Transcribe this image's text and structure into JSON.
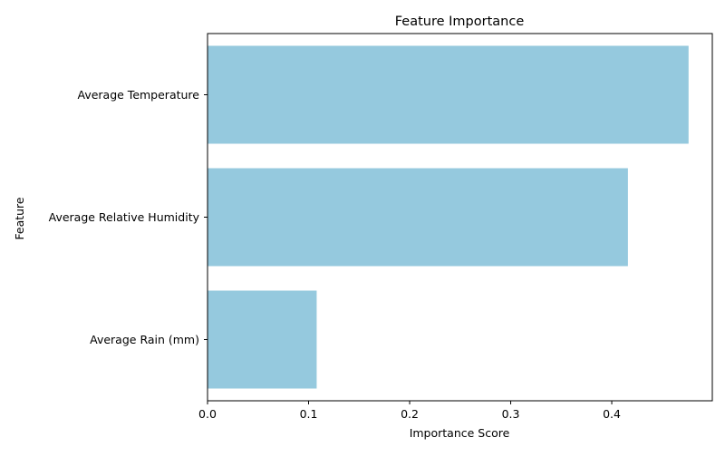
{
  "chart_data": {
    "type": "bar",
    "orientation": "horizontal",
    "title": "Feature Importance",
    "xlabel": "Importance Score",
    "ylabel": "Feature",
    "categories": [
      "Average Temperature",
      "Average Relative Humidity",
      "Average Rain (mm)"
    ],
    "values": [
      0.476,
      0.416,
      0.108
    ],
    "xlim": [
      0,
      0.4995
    ],
    "xticks": [
      "0.0",
      "0.1",
      "0.2",
      "0.3",
      "0.4"
    ],
    "grid": false,
    "bar_color": "#95c9de"
  }
}
